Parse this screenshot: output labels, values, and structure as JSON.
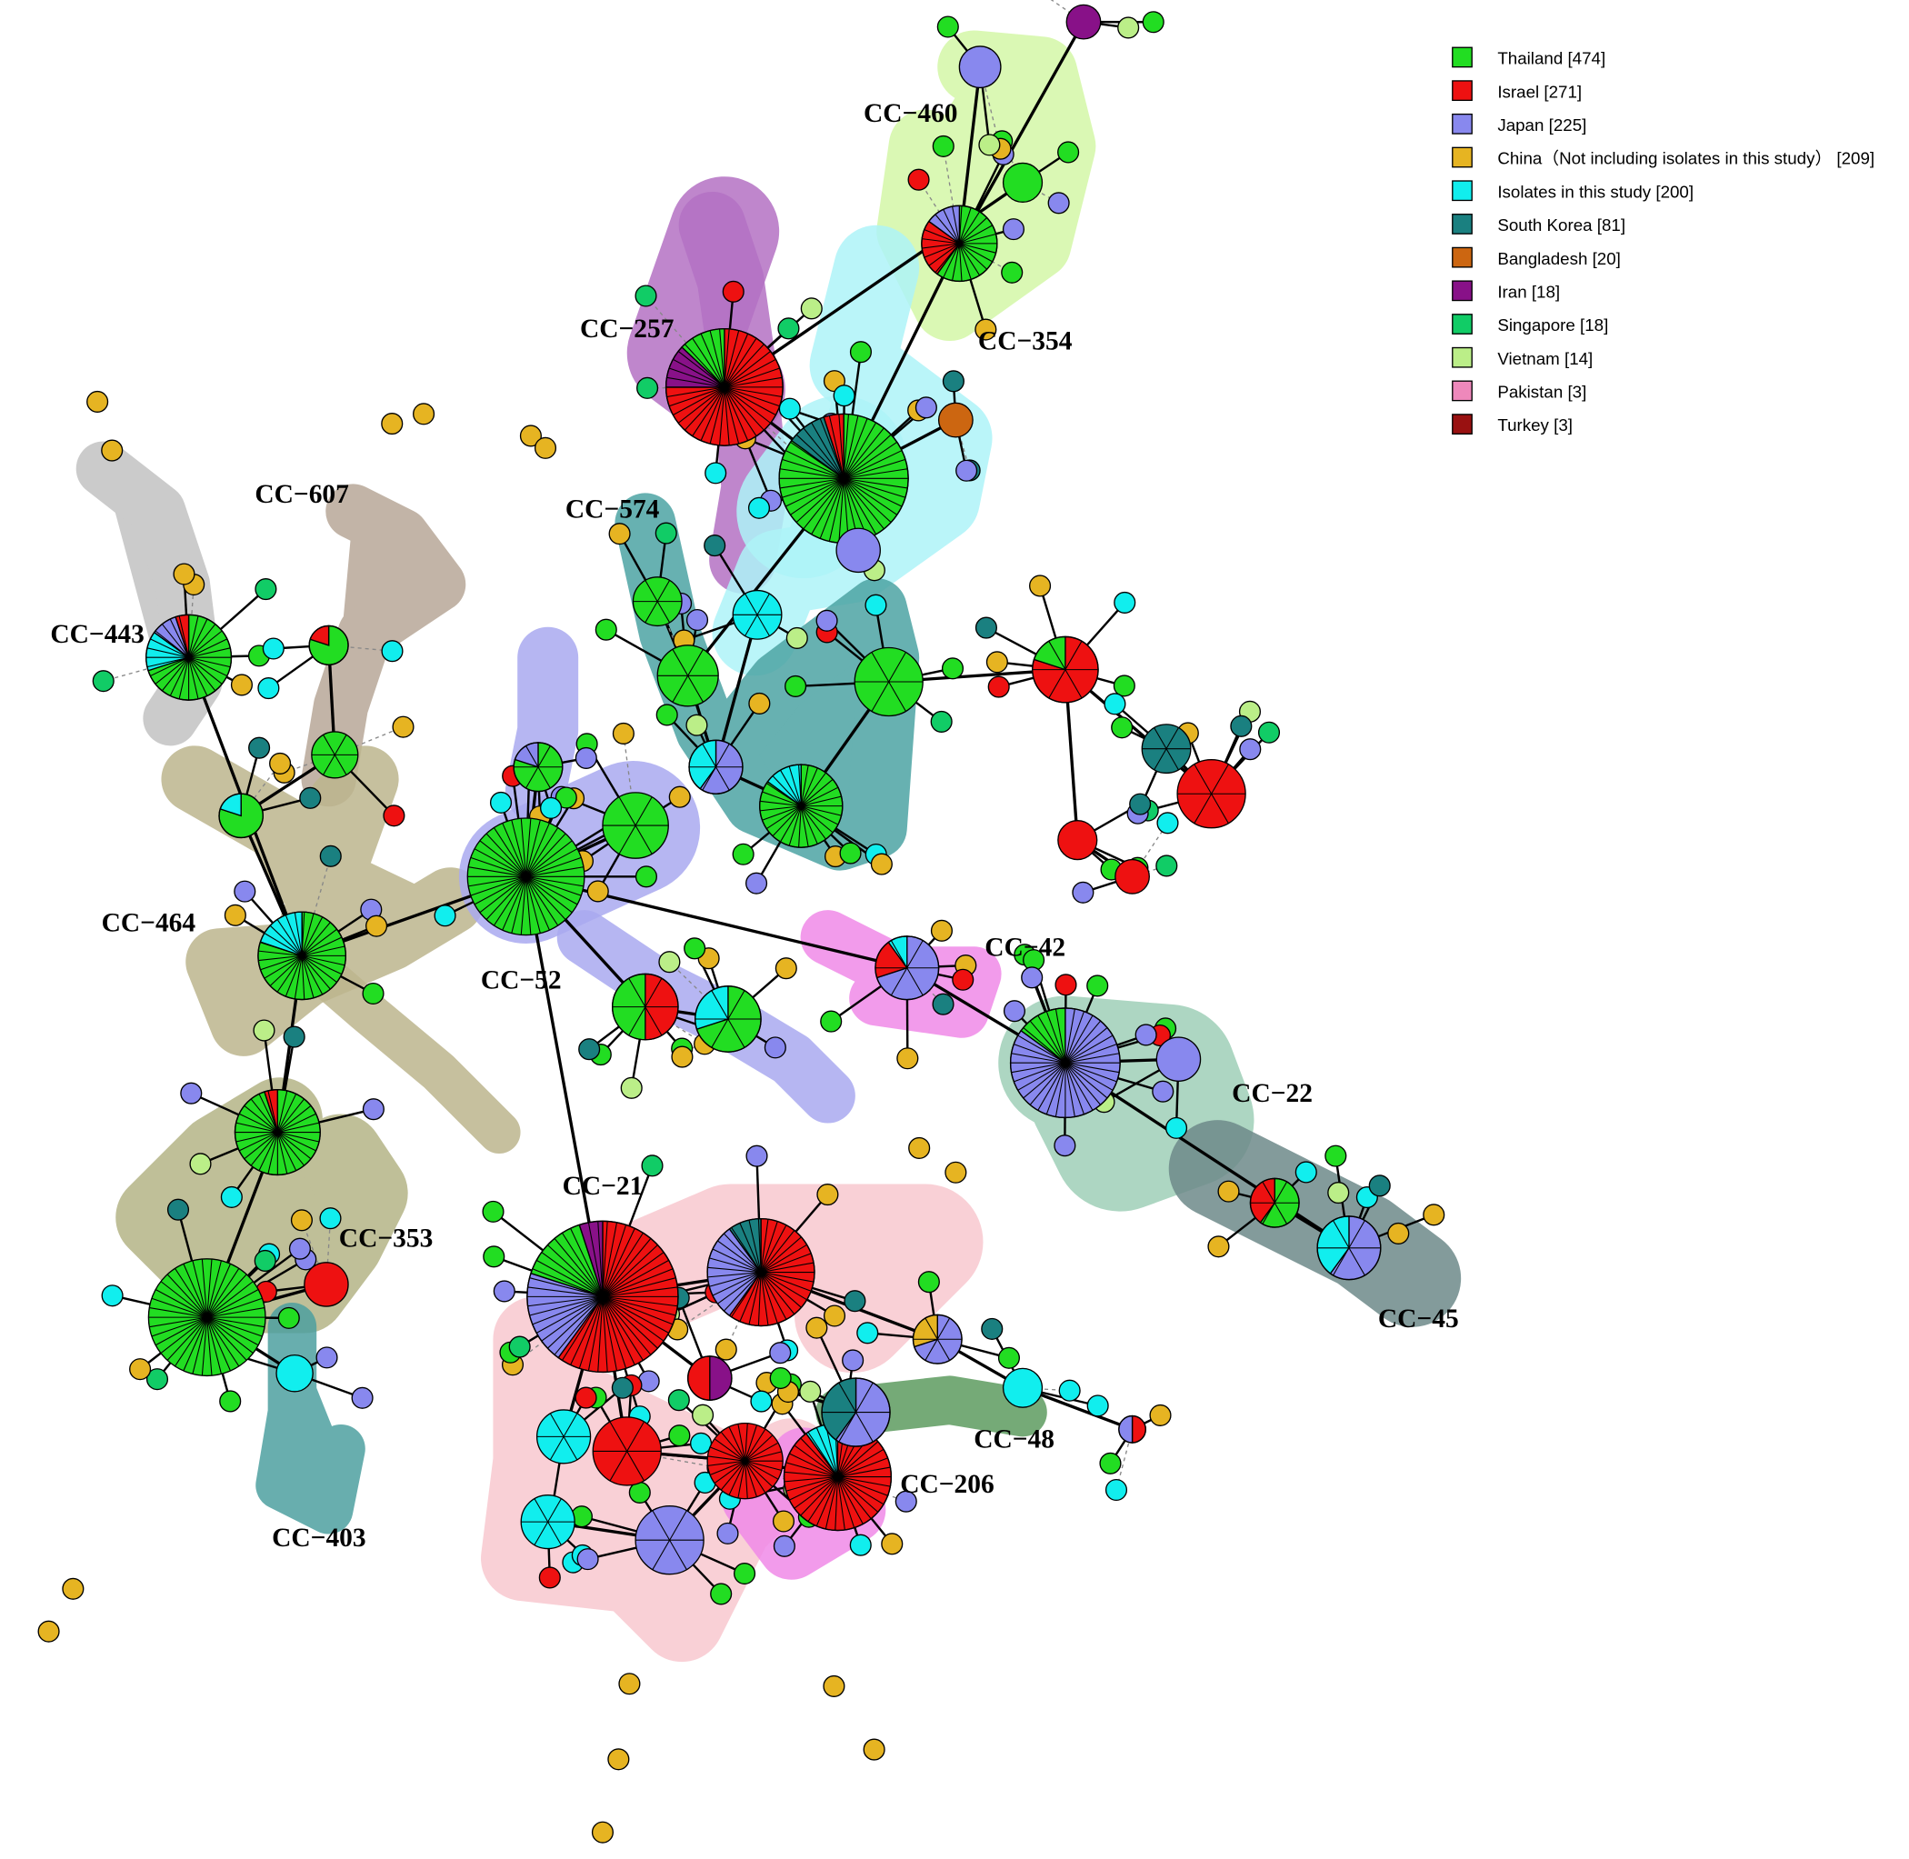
{
  "legend": {
    "items": [
      {
        "label": "Thailand [474]",
        "color": "#22dd22"
      },
      {
        "label": "Israel [271]",
        "color": "#ee1111"
      },
      {
        "label": "Japan  [225]",
        "color": "#8888ee"
      },
      {
        "label": "China（Not including isolates in this study） [209]",
        "color": "#e6b422"
      },
      {
        "label": "Isolates in this study  [200]",
        "color": "#11eeee"
      },
      {
        "label": "South Korea [81]",
        "color": "#1a8080"
      },
      {
        "label": "Bangladesh [20]",
        "color": "#cc6611"
      },
      {
        "label": "Iran [18]",
        "color": "#881188"
      },
      {
        "label": "Singapore [18]",
        "color": "#11cc66"
      },
      {
        "label": "Vietnam [14]",
        "color": "#bbee88"
      },
      {
        "label": "Pakistan [3]",
        "color": "#ee88bb"
      },
      {
        "label": "Turkey [3]",
        "color": "#991111"
      }
    ]
  },
  "clusters": [
    {
      "label": "CC−460"
    },
    {
      "label": "CC−257"
    },
    {
      "label": "CC−354"
    },
    {
      "label": "CC−607"
    },
    {
      "label": "CC−574"
    },
    {
      "label": "CC−443"
    },
    {
      "label": "CC−464"
    },
    {
      "label": "CC−52"
    },
    {
      "label": "CC−42"
    },
    {
      "label": "CC−22"
    },
    {
      "label": "CC−353"
    },
    {
      "label": "CC−21"
    },
    {
      "label": "CC−45"
    },
    {
      "label": "CC−48"
    },
    {
      "label": "CC−206"
    },
    {
      "label": "CC−403"
    }
  ]
}
